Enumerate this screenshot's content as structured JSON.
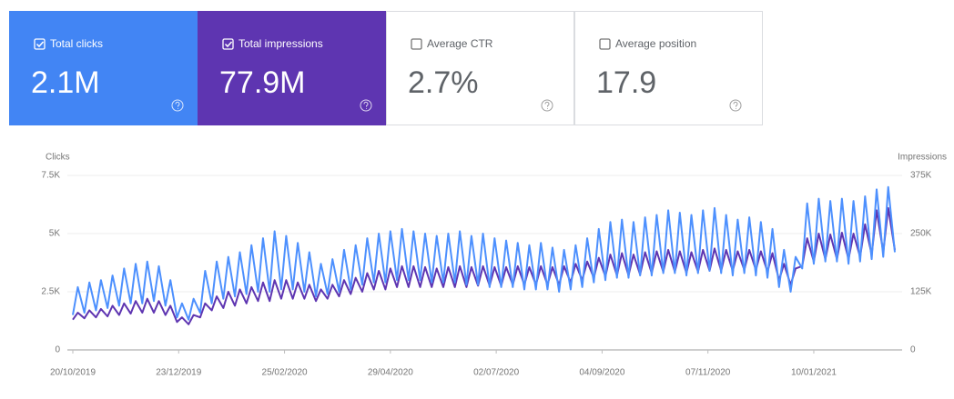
{
  "cards": [
    {
      "label": "Total clicks",
      "value": "2.1M",
      "checked": true,
      "color": "#4285f4"
    },
    {
      "label": "Total impressions",
      "value": "77.9M",
      "checked": true,
      "color": "#5e35b1"
    },
    {
      "label": "Average CTR",
      "value": "2.7%",
      "checked": false,
      "color": "#ffffff"
    },
    {
      "label": "Average position",
      "value": "17.9",
      "checked": false,
      "color": "#ffffff"
    }
  ],
  "chart_data": {
    "type": "line",
    "y_label": "Clicks",
    "y2_label": "Impressions",
    "x": [
      "2019-10-20",
      "2019-10-23",
      "2019-10-27",
      "2019-10-30",
      "2019-11-03",
      "2019-11-06",
      "2019-11-10",
      "2019-11-13",
      "2019-11-17",
      "2019-11-20",
      "2019-11-24",
      "2019-11-27",
      "2019-12-01",
      "2019-12-04",
      "2019-12-08",
      "2019-12-11",
      "2019-12-15",
      "2019-12-18",
      "2019-12-22",
      "2019-12-25",
      "2019-12-29",
      "2020-01-01",
      "2020-01-05",
      "2020-01-08",
      "2020-01-12",
      "2020-01-15",
      "2020-01-19",
      "2020-01-22",
      "2020-01-26",
      "2020-01-29",
      "2020-02-02",
      "2020-02-05",
      "2020-02-09",
      "2020-02-12",
      "2020-02-16",
      "2020-02-19",
      "2020-02-23",
      "2020-02-26",
      "2020-03-01",
      "2020-03-04",
      "2020-03-08",
      "2020-03-11",
      "2020-03-15",
      "2020-03-18",
      "2020-03-22",
      "2020-03-25",
      "2020-03-29",
      "2020-04-01",
      "2020-04-05",
      "2020-04-08",
      "2020-04-12",
      "2020-04-15",
      "2020-04-19",
      "2020-04-22",
      "2020-04-26",
      "2020-04-29",
      "2020-05-03",
      "2020-05-06",
      "2020-05-10",
      "2020-05-13",
      "2020-05-17",
      "2020-05-20",
      "2020-05-24",
      "2020-05-27",
      "2020-05-31",
      "2020-06-03",
      "2020-06-07",
      "2020-06-10",
      "2020-06-14",
      "2020-06-17",
      "2020-06-21",
      "2020-06-24",
      "2020-06-28",
      "2020-07-01",
      "2020-07-05",
      "2020-07-08",
      "2020-07-12",
      "2020-07-15",
      "2020-07-19",
      "2020-07-22",
      "2020-07-26",
      "2020-07-29",
      "2020-08-02",
      "2020-08-05",
      "2020-08-09",
      "2020-08-12",
      "2020-08-16",
      "2020-08-19",
      "2020-08-23",
      "2020-08-26",
      "2020-08-30",
      "2020-09-02",
      "2020-09-06",
      "2020-09-09",
      "2020-09-13",
      "2020-09-16",
      "2020-09-20",
      "2020-09-23",
      "2020-09-27",
      "2020-09-30",
      "2020-10-04",
      "2020-10-07",
      "2020-10-11",
      "2020-10-14",
      "2020-10-18",
      "2020-10-21",
      "2020-10-25",
      "2020-10-28",
      "2020-11-01",
      "2020-11-04",
      "2020-11-08",
      "2020-11-11",
      "2020-11-15",
      "2020-11-18",
      "2020-11-22",
      "2020-11-25",
      "2020-11-29",
      "2020-12-02",
      "2020-12-06",
      "2020-12-09",
      "2020-12-13",
      "2020-12-16",
      "2020-12-20",
      "2020-12-23",
      "2020-12-27",
      "2020-12-30",
      "2021-01-03",
      "2021-01-06",
      "2021-01-10",
      "2021-01-13",
      "2021-01-17",
      "2021-01-20",
      "2021-01-24",
      "2021-01-27",
      "2021-01-31",
      "2021-02-03",
      "2021-02-07",
      "2021-02-10",
      "2021-02-14",
      "2021-02-17",
      "2021-02-21",
      "2021-02-24",
      "2021-02-28"
    ],
    "xlim": [
      "2019-10-20",
      "2021-02-28"
    ],
    "xticks": [
      {
        "value": "2019-10-20",
        "label": "20/10/2019"
      },
      {
        "value": "2019-12-23",
        "label": "23/12/2019"
      },
      {
        "value": "2020-02-25",
        "label": "25/02/2020"
      },
      {
        "value": "2020-04-29",
        "label": "29/04/2020"
      },
      {
        "value": "2020-07-02",
        "label": "02/07/2020"
      },
      {
        "value": "2020-09-04",
        "label": "04/09/2020"
      },
      {
        "value": "2020-11-07",
        "label": "07/11/2020"
      },
      {
        "value": "2021-01-10",
        "label": "10/01/2021"
      }
    ],
    "ylim": [
      0,
      7500
    ],
    "yticks": [
      0,
      {
        "value": 2500,
        "label": "2.5K"
      },
      {
        "value": 5000,
        "label": "5K"
      },
      {
        "value": 7500,
        "label": "7.5K"
      }
    ],
    "y2lim": [
      0,
      375000
    ],
    "y2ticks": [
      0,
      {
        "value": 125000,
        "label": "125K"
      },
      {
        "value": 250000,
        "label": "250K"
      },
      {
        "value": 375000,
        "label": "375K"
      }
    ],
    "grid": true,
    "series": [
      {
        "color": "#4d90fe",
        "axis": "y",
        "values": [
          1500,
          2700,
          1600,
          2900,
          1700,
          3000,
          1800,
          3200,
          1900,
          3500,
          2000,
          3700,
          2000,
          3800,
          2100,
          3600,
          1900,
          3000,
          1400,
          2000,
          1300,
          2200,
          1600,
          3400,
          2000,
          3800,
          2200,
          4000,
          2300,
          4200,
          2400,
          4500,
          2500,
          4800,
          2500,
          5100,
          2600,
          4900,
          2600,
          4600,
          2500,
          4200,
          2300,
          3700,
          2400,
          3900,
          2500,
          4300,
          2600,
          4500,
          2800,
          4800,
          2900,
          5000,
          2900,
          5100,
          3000,
          5200,
          3000,
          5100,
          3000,
          5000,
          2900,
          4900,
          2900,
          5000,
          2900,
          5100,
          2800,
          4900,
          2800,
          5000,
          2700,
          4800,
          2700,
          4700,
          2700,
          4600,
          2600,
          4500,
          2600,
          4600,
          2600,
          4400,
          2500,
          4300,
          2600,
          4500,
          2700,
          4800,
          2900,
          5200,
          3000,
          5500,
          3100,
          5600,
          3100,
          5500,
          3200,
          5700,
          3200,
          5800,
          3300,
          6000,
          3300,
          5900,
          3200,
          5800,
          3300,
          6000,
          3400,
          6100,
          3300,
          5800,
          3200,
          5600,
          3300,
          5700,
          3200,
          5500,
          3100,
          5200,
          2700,
          4300,
          2500,
          4000,
          3500,
          6300,
          3700,
          6500,
          3800,
          6400,
          3800,
          6500,
          3700,
          6400,
          3800,
          6600,
          3900,
          6900,
          4000,
          7000,
          4200
        ]
      },
      {
        "color": "#5e35b1",
        "axis": "y2",
        "values": [
          65000,
          80000,
          68000,
          85000,
          70000,
          88000,
          72000,
          95000,
          75000,
          100000,
          78000,
          105000,
          80000,
          110000,
          80000,
          105000,
          75000,
          95000,
          60000,
          70000,
          55000,
          75000,
          70000,
          100000,
          85000,
          115000,
          90000,
          125000,
          95000,
          130000,
          100000,
          135000,
          105000,
          145000,
          105000,
          150000,
          110000,
          150000,
          110000,
          145000,
          110000,
          140000,
          105000,
          130000,
          110000,
          140000,
          115000,
          150000,
          120000,
          155000,
          125000,
          165000,
          130000,
          170000,
          130000,
          175000,
          135000,
          180000,
          135000,
          180000,
          135000,
          178000,
          135000,
          175000,
          135000,
          178000,
          135000,
          180000,
          135000,
          178000,
          138000,
          180000,
          138000,
          178000,
          138000,
          178000,
          140000,
          180000,
          140000,
          178000,
          140000,
          180000,
          140000,
          178000,
          140000,
          180000,
          145000,
          185000,
          150000,
          190000,
          155000,
          198000,
          158000,
          205000,
          160000,
          208000,
          160000,
          205000,
          162000,
          210000,
          165000,
          212000,
          168000,
          215000,
          168000,
          212000,
          165000,
          210000,
          168000,
          215000,
          170000,
          218000,
          170000,
          215000,
          170000,
          212000,
          172000,
          215000,
          172000,
          212000,
          168000,
          208000,
          150000,
          185000,
          140000,
          175000,
          180000,
          240000,
          190000,
          250000,
          195000,
          248000,
          195000,
          252000,
          195000,
          250000,
          200000,
          270000,
          205000,
          300000,
          210000,
          305000,
          215000
        ]
      }
    ]
  }
}
